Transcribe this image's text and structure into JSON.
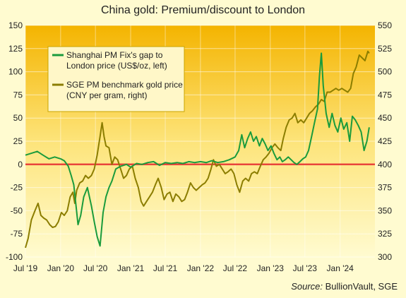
{
  "title": "China gold: Premium/discount to London",
  "source": {
    "label": "Source:",
    "text": " BullionVault, SGE"
  },
  "chart_data": {
    "type": "line",
    "title": "China gold: Premium/discount to London",
    "x_tick_labels": [
      "Jul '19",
      "Jan '20",
      "Jul '20",
      "Jan '21",
      "Jul '21",
      "Jan '22",
      "Jul '22",
      "Jan '23",
      "Jul '23",
      "Jan '24"
    ],
    "x_tick_dates": [
      "2019-07-01",
      "2020-01-01",
      "2020-07-01",
      "2021-01-01",
      "2021-07-01",
      "2022-01-01",
      "2022-07-01",
      "2023-01-01",
      "2023-07-01",
      "2024-01-01"
    ],
    "x_range": [
      "2019-07-01",
      "2024-07-01"
    ],
    "y_left": {
      "range": [
        -100,
        150
      ],
      "ticks": [
        -100,
        -75,
        -50,
        -25,
        0,
        25,
        50,
        75,
        100,
        125,
        150
      ]
    },
    "y_right": {
      "range": [
        300,
        550
      ],
      "ticks": [
        300,
        325,
        350,
        375,
        400,
        425,
        450,
        475,
        500,
        525,
        550
      ]
    },
    "zero_line_color": "#e8453c",
    "legend_position": "top-left",
    "series": [
      {
        "name": "Shanghai PM Fix's gap to London price (US$/oz, left)",
        "color": "#1a9b3c",
        "axis": "left",
        "points": [
          [
            "2019-07-01",
            10
          ],
          [
            "2019-08-01",
            12
          ],
          [
            "2019-09-01",
            14
          ],
          [
            "2019-10-01",
            10
          ],
          [
            "2019-11-01",
            6
          ],
          [
            "2019-12-01",
            8
          ],
          [
            "2020-01-01",
            6
          ],
          [
            "2020-01-20",
            4
          ],
          [
            "2020-02-10",
            -2
          ],
          [
            "2020-02-25",
            -12
          ],
          [
            "2020-03-10",
            -22
          ],
          [
            "2020-03-20",
            -42
          ],
          [
            "2020-04-01",
            -65
          ],
          [
            "2020-04-15",
            -55
          ],
          [
            "2020-05-01",
            -35
          ],
          [
            "2020-05-20",
            -25
          ],
          [
            "2020-06-10",
            -45
          ],
          [
            "2020-06-25",
            -62
          ],
          [
            "2020-07-10",
            -78
          ],
          [
            "2020-07-25",
            -88
          ],
          [
            "2020-08-10",
            -52
          ],
          [
            "2020-08-25",
            -35
          ],
          [
            "2020-09-10",
            -25
          ],
          [
            "2020-09-25",
            -18
          ],
          [
            "2020-10-15",
            -5
          ],
          [
            "2020-11-10",
            -2
          ],
          [
            "2020-12-10",
            0
          ],
          [
            "2021-01-01",
            -3
          ],
          [
            "2021-02-01",
            1
          ],
          [
            "2021-03-01",
            0
          ],
          [
            "2021-04-01",
            2
          ],
          [
            "2021-05-01",
            3
          ],
          [
            "2021-06-01",
            -1
          ],
          [
            "2021-07-01",
            2
          ],
          [
            "2021-08-01",
            1
          ],
          [
            "2021-09-01",
            2
          ],
          [
            "2021-10-01",
            1
          ],
          [
            "2021-11-01",
            3
          ],
          [
            "2021-12-01",
            2
          ],
          [
            "2022-01-01",
            3
          ],
          [
            "2022-02-01",
            2
          ],
          [
            "2022-03-01",
            4
          ],
          [
            "2022-04-01",
            2
          ],
          [
            "2022-05-01",
            3
          ],
          [
            "2022-06-01",
            5
          ],
          [
            "2022-07-01",
            8
          ],
          [
            "2022-07-20",
            15
          ],
          [
            "2022-08-05",
            32
          ],
          [
            "2022-08-20",
            18
          ],
          [
            "2022-09-05",
            28
          ],
          [
            "2022-09-20",
            35
          ],
          [
            "2022-10-05",
            25
          ],
          [
            "2022-10-20",
            30
          ],
          [
            "2022-11-05",
            20
          ],
          [
            "2022-11-20",
            28
          ],
          [
            "2022-12-05",
            22
          ],
          [
            "2022-12-20",
            15
          ],
          [
            "2023-01-05",
            20
          ],
          [
            "2023-01-20",
            12
          ],
          [
            "2023-02-05",
            5
          ],
          [
            "2023-02-20",
            8
          ],
          [
            "2023-03-05",
            3
          ],
          [
            "2023-03-20",
            5
          ],
          [
            "2023-04-05",
            8
          ],
          [
            "2023-04-20",
            5
          ],
          [
            "2023-05-05",
            2
          ],
          [
            "2023-05-20",
            0
          ],
          [
            "2023-06-05",
            3
          ],
          [
            "2023-06-20",
            6
          ],
          [
            "2023-07-05",
            8
          ],
          [
            "2023-07-20",
            15
          ],
          [
            "2023-08-05",
            30
          ],
          [
            "2023-08-20",
            45
          ],
          [
            "2023-09-05",
            60
          ],
          [
            "2023-09-15",
            95
          ],
          [
            "2023-09-25",
            120
          ],
          [
            "2023-10-05",
            85
          ],
          [
            "2023-10-20",
            55
          ],
          [
            "2023-11-05",
            40
          ],
          [
            "2023-11-20",
            55
          ],
          [
            "2023-12-05",
            42
          ],
          [
            "2023-12-20",
            35
          ],
          [
            "2024-01-05",
            50
          ],
          [
            "2024-01-20",
            38
          ],
          [
            "2024-02-05",
            45
          ],
          [
            "2024-02-20",
            25
          ],
          [
            "2024-03-05",
            52
          ],
          [
            "2024-03-20",
            48
          ],
          [
            "2024-04-05",
            42
          ],
          [
            "2024-04-20",
            35
          ],
          [
            "2024-05-05",
            15
          ],
          [
            "2024-05-20",
            25
          ],
          [
            "2024-06-01",
            40
          ]
        ]
      },
      {
        "name": "SGE PM benchmark gold price (CNY per gram, right)",
        "color": "#8b7d00",
        "axis": "right",
        "points": [
          [
            "2019-07-01",
            310
          ],
          [
            "2019-07-15",
            320
          ],
          [
            "2019-08-01",
            340
          ],
          [
            "2019-08-20",
            350
          ],
          [
            "2019-09-05",
            358
          ],
          [
            "2019-09-20",
            345
          ],
          [
            "2019-10-05",
            342
          ],
          [
            "2019-10-20",
            340
          ],
          [
            "2019-11-05",
            335
          ],
          [
            "2019-11-20",
            332
          ],
          [
            "2019-12-05",
            333
          ],
          [
            "2019-12-20",
            338
          ],
          [
            "2020-01-05",
            348
          ],
          [
            "2020-01-20",
            345
          ],
          [
            "2020-02-05",
            350
          ],
          [
            "2020-02-20",
            365
          ],
          [
            "2020-03-05",
            370
          ],
          [
            "2020-03-15",
            358
          ],
          [
            "2020-03-25",
            372
          ],
          [
            "2020-04-10",
            380
          ],
          [
            "2020-04-25",
            382
          ],
          [
            "2020-05-10",
            388
          ],
          [
            "2020-05-25",
            385
          ],
          [
            "2020-06-10",
            388
          ],
          [
            "2020-06-25",
            395
          ],
          [
            "2020-07-10",
            410
          ],
          [
            "2020-07-25",
            430
          ],
          [
            "2020-08-05",
            445
          ],
          [
            "2020-08-15",
            430
          ],
          [
            "2020-08-25",
            420
          ],
          [
            "2020-09-10",
            418
          ],
          [
            "2020-09-25",
            400
          ],
          [
            "2020-10-10",
            408
          ],
          [
            "2020-10-25",
            405
          ],
          [
            "2020-11-10",
            395
          ],
          [
            "2020-11-25",
            385
          ],
          [
            "2020-12-10",
            388
          ],
          [
            "2020-12-25",
            395
          ],
          [
            "2021-01-10",
            398
          ],
          [
            "2021-01-25",
            385
          ],
          [
            "2021-02-10",
            375
          ],
          [
            "2021-02-25",
            360
          ],
          [
            "2021-03-10",
            355
          ],
          [
            "2021-03-25",
            360
          ],
          [
            "2021-04-10",
            365
          ],
          [
            "2021-04-25",
            370
          ],
          [
            "2021-05-10",
            378
          ],
          [
            "2021-05-25",
            385
          ],
          [
            "2021-06-10",
            375
          ],
          [
            "2021-06-25",
            362
          ],
          [
            "2021-07-10",
            368
          ],
          [
            "2021-07-25",
            370
          ],
          [
            "2021-08-10",
            360
          ],
          [
            "2021-08-25",
            368
          ],
          [
            "2021-09-10",
            365
          ],
          [
            "2021-09-25",
            360
          ],
          [
            "2021-10-10",
            362
          ],
          [
            "2021-10-25",
            370
          ],
          [
            "2021-11-10",
            380
          ],
          [
            "2021-11-25",
            375
          ],
          [
            "2021-12-10",
            372
          ],
          [
            "2021-12-25",
            375
          ],
          [
            "2022-01-10",
            378
          ],
          [
            "2022-01-25",
            380
          ],
          [
            "2022-02-10",
            385
          ],
          [
            "2022-02-25",
            395
          ],
          [
            "2022-03-10",
            405
          ],
          [
            "2022-03-25",
            398
          ],
          [
            "2022-04-10",
            400
          ],
          [
            "2022-04-25",
            395
          ],
          [
            "2022-05-10",
            390
          ],
          [
            "2022-05-25",
            392
          ],
          [
            "2022-06-10",
            395
          ],
          [
            "2022-06-25",
            390
          ],
          [
            "2022-07-10",
            378
          ],
          [
            "2022-07-25",
            370
          ],
          [
            "2022-08-10",
            382
          ],
          [
            "2022-08-25",
            385
          ],
          [
            "2022-09-10",
            382
          ],
          [
            "2022-09-25",
            390
          ],
          [
            "2022-10-10",
            392
          ],
          [
            "2022-10-25",
            390
          ],
          [
            "2022-11-10",
            398
          ],
          [
            "2022-11-25",
            405
          ],
          [
            "2022-12-10",
            408
          ],
          [
            "2022-12-25",
            412
          ],
          [
            "2023-01-10",
            418
          ],
          [
            "2023-01-25",
            422
          ],
          [
            "2023-02-10",
            418
          ],
          [
            "2023-02-25",
            415
          ],
          [
            "2023-03-10",
            428
          ],
          [
            "2023-03-25",
            440
          ],
          [
            "2023-04-10",
            448
          ],
          [
            "2023-04-25",
            450
          ],
          [
            "2023-05-10",
            455
          ],
          [
            "2023-05-25",
            445
          ],
          [
            "2023-06-10",
            448
          ],
          [
            "2023-06-25",
            445
          ],
          [
            "2023-07-10",
            450
          ],
          [
            "2023-07-25",
            455
          ],
          [
            "2023-08-10",
            458
          ],
          [
            "2023-08-25",
            462
          ],
          [
            "2023-09-10",
            465
          ],
          [
            "2023-09-25",
            470
          ],
          [
            "2023-10-10",
            468
          ],
          [
            "2023-10-25",
            478
          ],
          [
            "2023-11-10",
            478
          ],
          [
            "2023-11-25",
            480
          ],
          [
            "2023-12-10",
            482
          ],
          [
            "2023-12-25",
            480
          ],
          [
            "2024-01-10",
            482
          ],
          [
            "2024-01-25",
            480
          ],
          [
            "2024-02-10",
            478
          ],
          [
            "2024-02-25",
            482
          ],
          [
            "2024-03-10",
            498
          ],
          [
            "2024-03-25",
            505
          ],
          [
            "2024-04-10",
            518
          ],
          [
            "2024-04-25",
            515
          ],
          [
            "2024-05-10",
            512
          ],
          [
            "2024-05-25",
            522
          ],
          [
            "2024-06-01",
            520
          ]
        ]
      }
    ]
  }
}
